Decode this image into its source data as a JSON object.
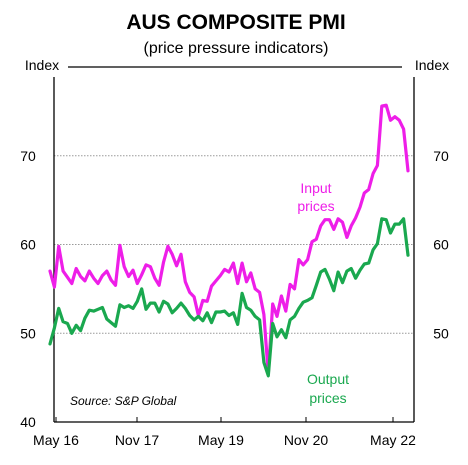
{
  "chart_data": {
    "type": "line",
    "title": "AUS COMPOSITE PMI",
    "subtitle": "(price pressure indicators)",
    "ylabel_left": "Index",
    "ylabel_right": "Index",
    "ylim": [
      40,
      80
    ],
    "yticks": [
      40,
      50,
      60,
      70
    ],
    "xticks": [
      "May 16",
      "Nov 17",
      "May 19",
      "Nov 20",
      "May 22"
    ],
    "grid": true,
    "source": "Source: S&P Global",
    "colors": {
      "input": "#ee1ee8",
      "output": "#1aa84f",
      "grid": "#9a9a9a",
      "axis": "#000000"
    },
    "series": [
      {
        "key": "input",
        "label_lines": [
          "Input",
          "prices"
        ],
        "values": [
          57.0,
          55.2,
          59.8,
          57.0,
          56.3,
          55.6,
          57.3,
          56.4,
          55.9,
          57.0,
          56.2,
          55.6,
          56.5,
          57.0,
          56.0,
          55.4,
          59.9,
          57.5,
          56.4,
          57.1,
          55.6,
          56.6,
          57.7,
          57.5,
          56.2,
          55.4,
          58.0,
          59.8,
          58.9,
          57.6,
          58.9,
          55.8,
          54.6,
          54.1,
          52.0,
          53.7,
          53.6,
          55.3,
          55.9,
          56.5,
          57.2,
          56.9,
          57.9,
          55.6,
          57.9,
          55.8,
          56.8,
          55.0,
          54.6,
          52.1,
          45.4,
          53.3,
          51.9,
          54.2,
          52.5,
          55.5,
          55.0,
          58.3,
          57.7,
          58.3,
          60.3,
          60.6,
          62.1,
          62.8,
          62.8,
          61.7,
          62.9,
          62.5,
          60.8,
          62.1,
          63.0,
          64.2,
          65.8,
          66.2,
          68.0,
          68.9,
          75.6,
          75.7,
          74.0,
          74.4,
          74.0,
          73.0,
          68.3
        ]
      },
      {
        "key": "output",
        "label_lines": [
          "Output",
          "prices"
        ],
        "values": [
          48.8,
          50.6,
          52.8,
          51.3,
          51.1,
          50.0,
          50.9,
          50.3,
          51.7,
          52.6,
          52.5,
          52.7,
          52.9,
          51.6,
          51.2,
          50.8,
          53.2,
          52.9,
          53.1,
          52.8,
          53.6,
          55.0,
          52.7,
          53.4,
          53.4,
          52.4,
          53.6,
          53.3,
          52.3,
          52.8,
          53.4,
          52.8,
          52.0,
          51.5,
          51.9,
          51.4,
          52.3,
          51.2,
          52.4,
          52.4,
          52.5,
          52.0,
          52.3,
          51.0,
          54.5,
          52.9,
          52.6,
          51.9,
          51.5,
          46.7,
          45.2,
          51.1,
          49.6,
          50.4,
          49.5,
          51.5,
          51.9,
          52.8,
          53.5,
          53.7,
          54.0,
          55.4,
          56.9,
          57.2,
          56.1,
          54.8,
          56.9,
          55.7,
          57.0,
          57.3,
          56.2,
          57.1,
          57.8,
          57.9,
          59.4,
          60.1,
          62.9,
          62.8,
          61.3,
          62.3,
          62.3,
          62.9,
          58.8
        ]
      }
    ]
  }
}
